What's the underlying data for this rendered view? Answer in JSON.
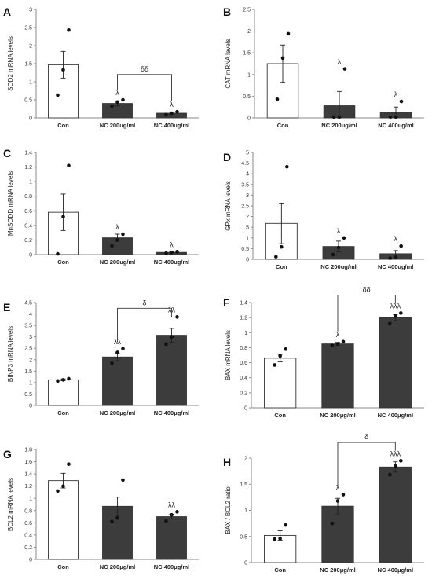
{
  "chart_data": [
    {
      "panel": "A",
      "type": "bar",
      "ylabel": "SOD2 mRNA levels",
      "ylim": [
        0,
        3
      ],
      "yticks": [
        "0",
        "0.5",
        "1",
        "1.5",
        "2",
        "2.5",
        "3"
      ],
      "categories": [
        "Con",
        "NC 200ug/ml",
        "NC 400ug/ml"
      ],
      "values": [
        1.47,
        0.4,
        0.13
      ],
      "errors": [
        0.37,
        0.07,
        0.03
      ],
      "points": [
        [
          0.63,
          1.33,
          2.43
        ],
        [
          0.32,
          0.44,
          0.5
        ],
        [
          0.09,
          0.13,
          0.17
        ]
      ],
      "fills": [
        "#ffffff",
        "#3c3c3c",
        "#3c3c3c"
      ],
      "marks": [
        "",
        "λ",
        "λ"
      ],
      "bracket": {
        "from": 1,
        "to": 2,
        "label": "δδ",
        "y": 1.2
      }
    },
    {
      "panel": "B",
      "type": "bar",
      "ylabel": "CAT mRNA levels",
      "ylim": [
        0,
        2.5
      ],
      "yticks": [
        "0",
        "0.5",
        "1",
        "1.5",
        "2",
        "2.5"
      ],
      "categories": [
        "Con",
        "NC 200ug/ml",
        "NC 400ug/ml"
      ],
      "values": [
        1.25,
        0.28,
        0.13
      ],
      "errors": [
        0.43,
        0.33,
        0.12
      ],
      "points": [
        [
          0.43,
          1.38,
          1.94
        ],
        [
          0.02,
          0.02,
          1.13
        ],
        [
          0.02,
          0.02,
          0.38
        ]
      ],
      "fills": [
        "#ffffff",
        "#3c3c3c",
        "#3c3c3c"
      ],
      "marks": [
        "",
        "λ",
        "λ"
      ]
    },
    {
      "panel": "C",
      "type": "bar",
      "ylabel": "MnSODD mRNA levels",
      "ylim": [
        0,
        1.4
      ],
      "yticks": [
        "0",
        "0.2",
        "0.4",
        "0.6",
        "0.8",
        "1",
        "1.2",
        "1.4"
      ],
      "categories": [
        "Con",
        "NC 200ug/ml",
        "NC 400ug/ml"
      ],
      "values": [
        0.58,
        0.23,
        0.03
      ],
      "errors": [
        0.25,
        0.05,
        0.01
      ],
      "points": [
        [
          0.01,
          0.52,
          1.22
        ],
        [
          0.12,
          0.2,
          0.28
        ],
        [
          0.02,
          0.03,
          0.04
        ]
      ],
      "fills": [
        "#ffffff",
        "#3c3c3c",
        "#3c3c3c"
      ],
      "marks": [
        "",
        "λ",
        "λ"
      ]
    },
    {
      "panel": "D",
      "type": "bar",
      "ylabel": "GPx mRNA levels",
      "ylim": [
        0,
        5
      ],
      "yticks": [
        "0",
        "0.5",
        "1",
        "1.5",
        "2",
        "2.5",
        "3",
        "3.5",
        "4",
        "4.5",
        "5"
      ],
      "categories": [
        "Con",
        "NC 200ug/ml",
        "NC 400ug/ml"
      ],
      "values": [
        1.68,
        0.6,
        0.26
      ],
      "errors": [
        0.95,
        0.25,
        0.15
      ],
      "points": [
        [
          0.12,
          0.58,
          4.33
        ],
        [
          0.22,
          0.55,
          1.0
        ],
        [
          0.05,
          0.1,
          0.62
        ]
      ],
      "fills": [
        "#ffffff",
        "#3c3c3c",
        "#3c3c3c"
      ],
      "marks": [
        "",
        "λ",
        "λ"
      ]
    },
    {
      "panel": "E",
      "type": "bar",
      "ylabel": "BINP3 mRNA levels",
      "ylim": [
        0,
        4.5
      ],
      "yticks": [
        "0",
        "0.5",
        "1",
        "1.5",
        "2",
        "2.5",
        "3",
        "3.5",
        "4",
        "4.5"
      ],
      "categories": [
        "Con",
        "NC 200μg/ml",
        "NC 400μg/ml"
      ],
      "values": [
        1.12,
        2.12,
        3.07
      ],
      "errors": [
        0.04,
        0.17,
        0.3
      ],
      "points": [
        [
          1.07,
          1.12,
          1.17
        ],
        [
          1.85,
          2.32,
          2.48
        ],
        [
          2.68,
          3.0,
          3.87
        ]
      ],
      "fills": [
        "#ffffff",
        "#3c3c3c",
        "#3c3c3c"
      ],
      "marks": [
        "",
        "λλ",
        "λλ"
      ],
      "bracket": {
        "from": 1,
        "to": 2,
        "label": "δ",
        "y": 4.25
      }
    },
    {
      "panel": "F",
      "type": "bar",
      "ylabel": "BAX mRNA levels",
      "ylim": [
        0,
        1.4
      ],
      "yticks": [
        "0",
        "0.2",
        "0.4",
        "0.6",
        "0.8",
        "1",
        "1.2",
        "1.4"
      ],
      "categories": [
        "Con",
        "NC 200μg/ml",
        "NC 400μg/ml"
      ],
      "values": [
        0.66,
        0.85,
        1.2
      ],
      "errors": [
        0.05,
        0.02,
        0.04
      ],
      "points": [
        [
          0.57,
          0.69,
          0.78
        ],
        [
          0.83,
          0.85,
          0.88
        ],
        [
          1.12,
          1.22,
          1.26
        ]
      ],
      "fills": [
        "#ffffff",
        "#3c3c3c",
        "#3c3c3c"
      ],
      "marks": [
        "",
        "λ",
        "λλλ"
      ],
      "bracket": {
        "from": 1,
        "to": 2,
        "label": "δδ",
        "y": 1.5
      }
    },
    {
      "panel": "G",
      "type": "bar",
      "ylabel": "BCL2 mRNA levels",
      "ylim": [
        0,
        1.8
      ],
      "yticks": [
        "0",
        "0.2",
        "0.4",
        "0.6",
        "0.8",
        "1",
        "1.2",
        "1.4",
        "1.6",
        "1.8"
      ],
      "categories": [
        "Con",
        "NC 200μg/ml",
        "NC 400μg/ml"
      ],
      "values": [
        1.29,
        0.87,
        0.7
      ],
      "errors": [
        0.12,
        0.15,
        0.04
      ],
      "points": [
        [
          1.12,
          1.2,
          1.56
        ],
        [
          0.62,
          0.68,
          1.3
        ],
        [
          0.63,
          0.73,
          0.78
        ]
      ],
      "fills": [
        "#ffffff",
        "#3c3c3c",
        "#3c3c3c"
      ],
      "marks": [
        "",
        "",
        "λλ"
      ]
    },
    {
      "panel": "H",
      "type": "bar",
      "ylabel": "BAX / BCL2 ratio",
      "ylim": [
        0,
        2
      ],
      "yticks": [
        "0",
        "0.5",
        "1",
        "1.5",
        "2"
      ],
      "categories": [
        "Con",
        "NC 200μg/ml",
        "NC 400μg/ml"
      ],
      "values": [
        0.52,
        1.08,
        1.83
      ],
      "errors": [
        0.09,
        0.15,
        0.1
      ],
      "points": [
        [
          0.45,
          0.46,
          0.72
        ],
        [
          0.75,
          1.18,
          1.3
        ],
        [
          1.68,
          1.85,
          1.95
        ]
      ],
      "fills": [
        "#ffffff",
        "#3c3c3c",
        "#3c3c3c"
      ],
      "marks": [
        "",
        "λ",
        "λλλ"
      ],
      "bracket": {
        "from": 1,
        "to": 2,
        "label": "δ",
        "y": 2.3
      }
    }
  ]
}
